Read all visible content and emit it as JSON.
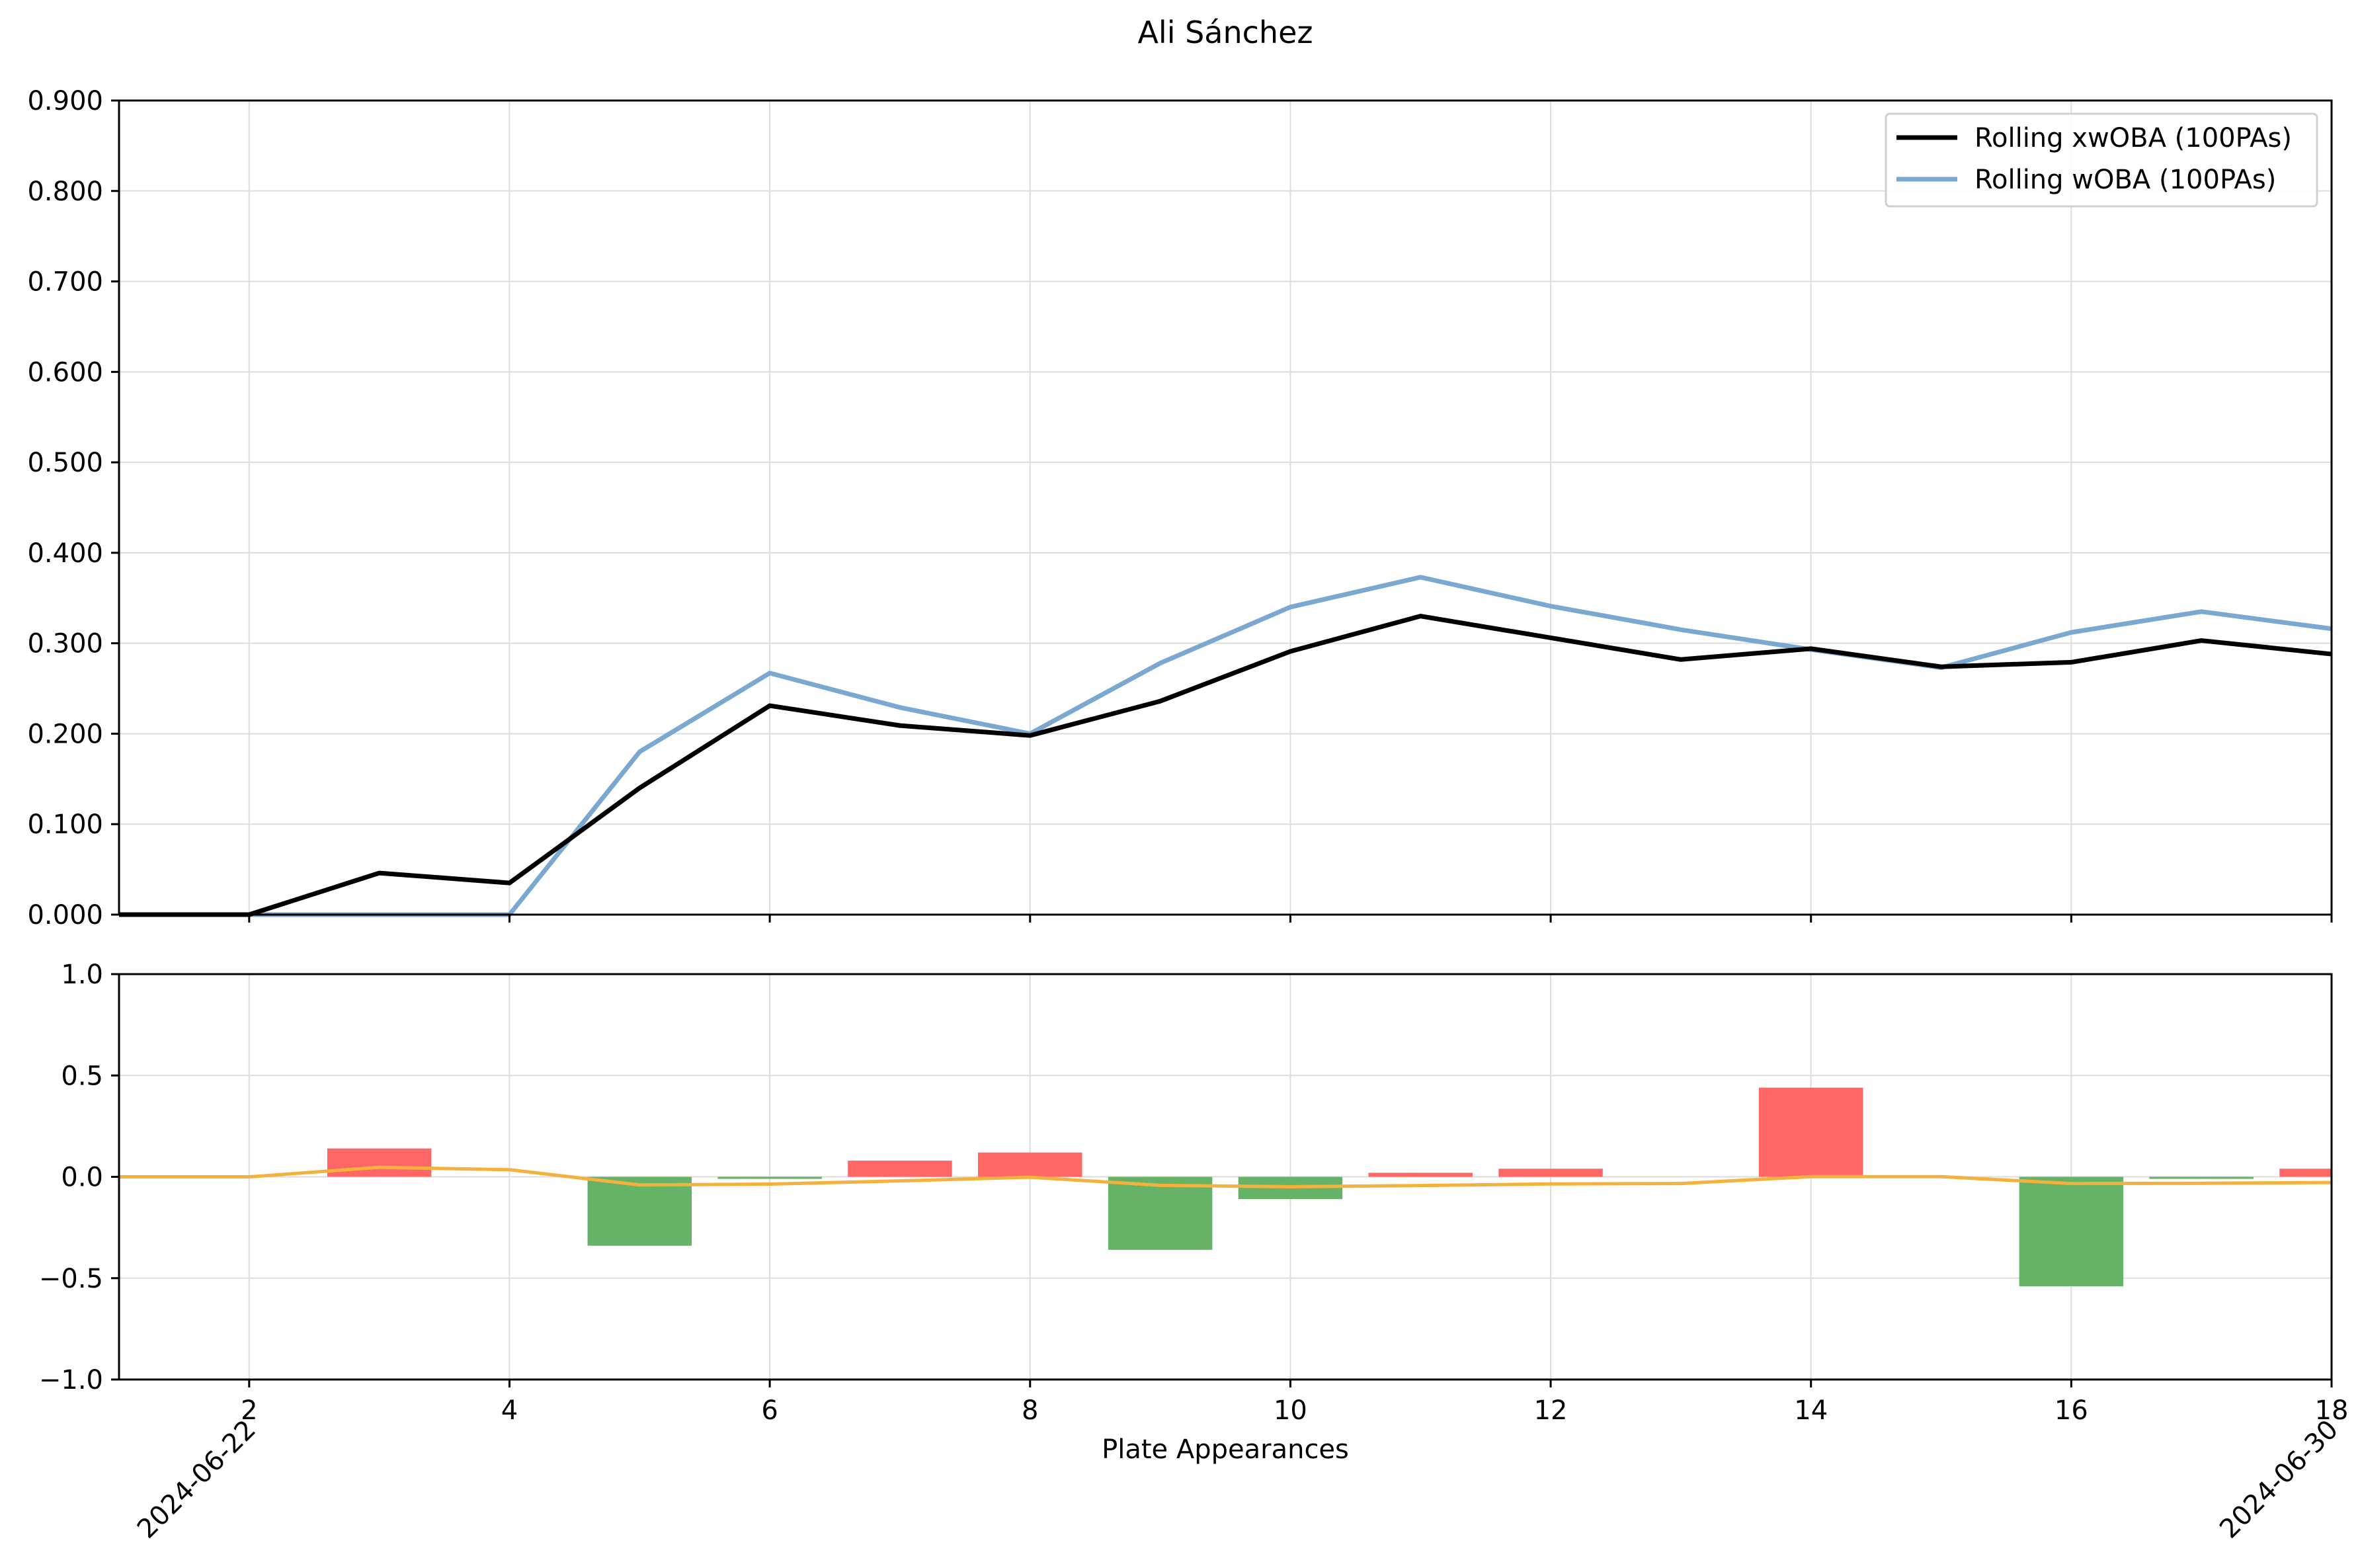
{
  "title": "Ali Sánchez",
  "chart_data": [
    {
      "type": "line",
      "ylim": [
        0,
        0.9
      ],
      "xlim": [
        1,
        18
      ],
      "yticks": [
        "0.000",
        "0.100",
        "0.200",
        "0.300",
        "0.400",
        "0.500",
        "0.600",
        "0.700",
        "0.800",
        "0.900"
      ],
      "grid": true,
      "legend_position": "top-right",
      "x": [
        1,
        2,
        3,
        4,
        5,
        6,
        7,
        8,
        9,
        10,
        11,
        12,
        13,
        14,
        15,
        16,
        17,
        18
      ],
      "series": [
        {
          "name": "Rolling xwOBA (100PAs)",
          "color": "#000000",
          "values": [
            0,
            0,
            0.046,
            0.035,
            0.14,
            0.231,
            0.209,
            0.198,
            0.236,
            0.291,
            0.33,
            0.306,
            0.282,
            0.294,
            0.274,
            0.279,
            0.303,
            0.288
          ]
        },
        {
          "name": "Rolling wOBA (100PAs)",
          "color": "#7aa8d1",
          "values": [
            0,
            0,
            0,
            0,
            0.18,
            0.267,
            0.229,
            0.2,
            0.278,
            0.34,
            0.373,
            0.341,
            0.315,
            0.293,
            0.273,
            0.312,
            0.335,
            0.316
          ]
        }
      ]
    },
    {
      "type": "bar",
      "ylim": [
        -1,
        1
      ],
      "xlim": [
        1,
        18
      ],
      "yticks": [
        "−1.0",
        "−0.5",
        "0.0",
        "0.5",
        "1.0"
      ],
      "xticks": [
        "2",
        "4",
        "6",
        "8",
        "10",
        "12",
        "14",
        "16",
        "18"
      ],
      "xtick_values": [
        2,
        4,
        6,
        8,
        10,
        12,
        14,
        16,
        18
      ],
      "xlabel": "Plate Appearances",
      "date_labels": [
        {
          "x": 2,
          "label": "2024-06-22"
        },
        {
          "x": 18,
          "label": "2024-06-30"
        }
      ],
      "grid": true,
      "x": [
        1,
        2,
        3,
        4,
        5,
        6,
        7,
        8,
        9,
        10,
        11,
        12,
        13,
        14,
        15,
        16,
        17,
        18
      ],
      "bar_values": [
        0,
        0,
        0.14,
        0,
        -0.34,
        -0.01,
        0.08,
        0.12,
        -0.36,
        -0.11,
        0.02,
        0.04,
        0,
        0.44,
        0,
        -0.54,
        -0.01,
        0.04
      ],
      "positive_color": "#ff6666",
      "negative_color": "#66b266",
      "line": {
        "color": "#f5b13d",
        "values": [
          0,
          0,
          0.047,
          0.035,
          -0.04,
          -0.036,
          -0.02,
          -0.002,
          -0.042,
          -0.049,
          -0.043,
          -0.035,
          -0.033,
          0.001,
          0.001,
          -0.033,
          -0.032,
          -0.028
        ]
      }
    }
  ]
}
